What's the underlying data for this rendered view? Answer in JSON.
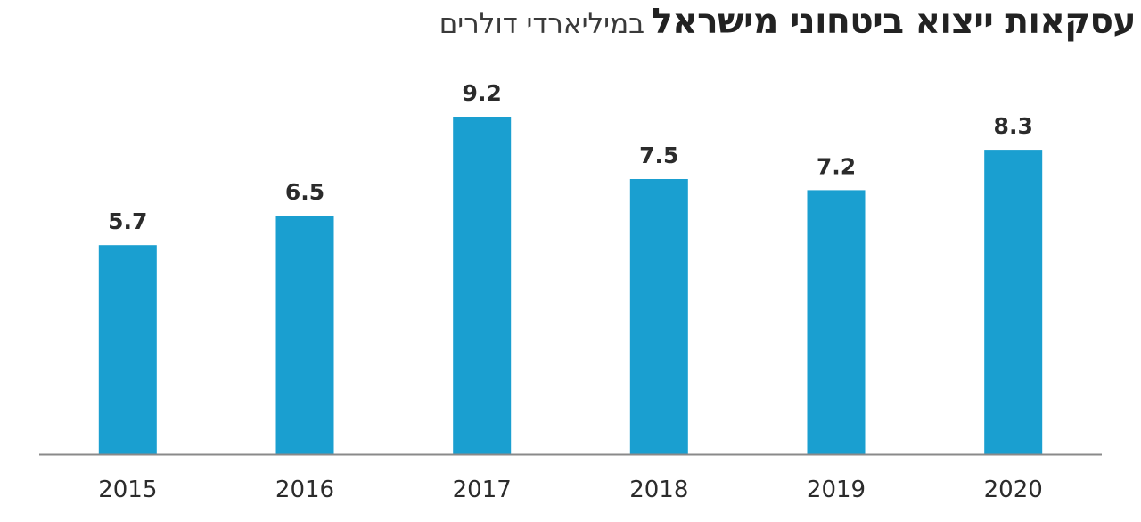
{
  "chart_data": {
    "type": "bar",
    "title": "עסקאות ייצוא ביטחוני מישראל",
    "subtitle": "במיליארדי דולרים",
    "categories": [
      "2015",
      "2016",
      "2017",
      "2018",
      "2019",
      "2020"
    ],
    "values": [
      5.7,
      6.5,
      9.2,
      7.5,
      7.2,
      8.3
    ],
    "value_labels": [
      "5.7",
      "6.5",
      "9.2",
      "7.5",
      "7.2",
      "8.3"
    ],
    "xlabel": "",
    "ylabel": "",
    "ylim": [
      0,
      9.2
    ],
    "grid": false,
    "legend": "none",
    "bar_color": "#1a9fd0",
    "axis_color": "#8a8a8a",
    "text_color": "#2b2b2b"
  }
}
